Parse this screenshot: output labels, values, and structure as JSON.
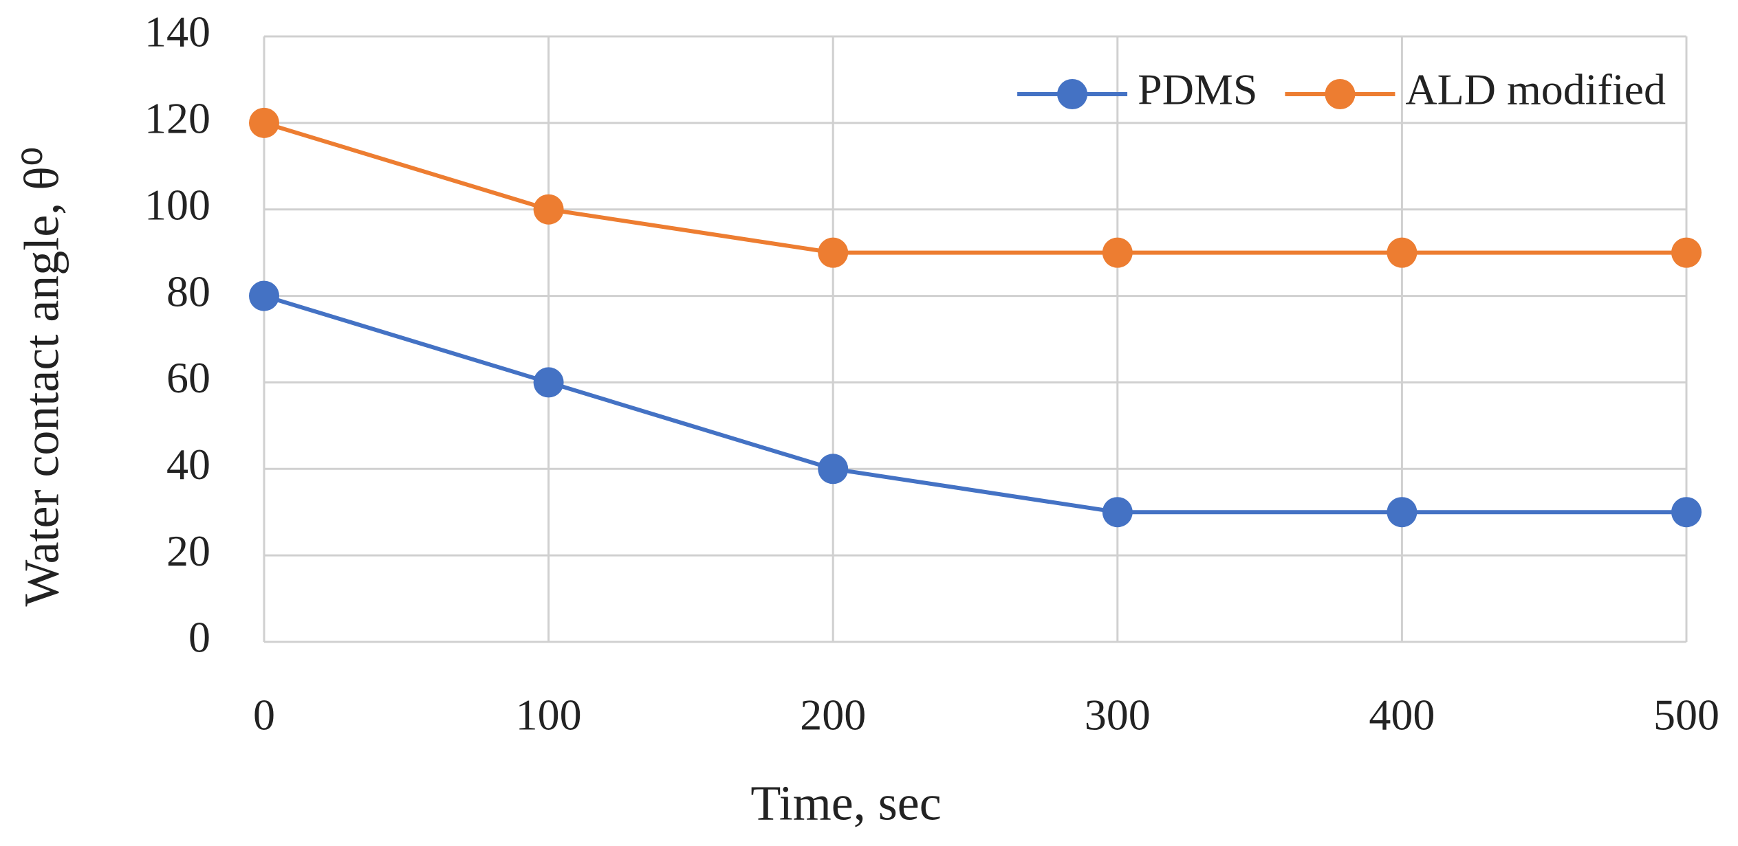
{
  "chart_data": {
    "type": "line",
    "x": [
      0,
      100,
      200,
      300,
      400,
      500
    ],
    "series": [
      {
        "name": "PDMS",
        "color": "#4472c4",
        "values": [
          80,
          60,
          40,
          30,
          30,
          30
        ]
      },
      {
        "name": "ALD modified",
        "color": "#ed7d31",
        "values": [
          120,
          100,
          90,
          90,
          90,
          90
        ]
      }
    ],
    "xlim": [
      0,
      500
    ],
    "xticks": [
      0,
      100,
      200,
      300,
      400,
      500
    ],
    "ylim": [
      0,
      140
    ],
    "yticks": [
      0,
      20,
      40,
      60,
      80,
      100,
      120,
      140
    ],
    "xlabel": "Time, sec",
    "ylabel": "Water contact angle, θ⁰",
    "grid": true,
    "legend": "upper right"
  }
}
